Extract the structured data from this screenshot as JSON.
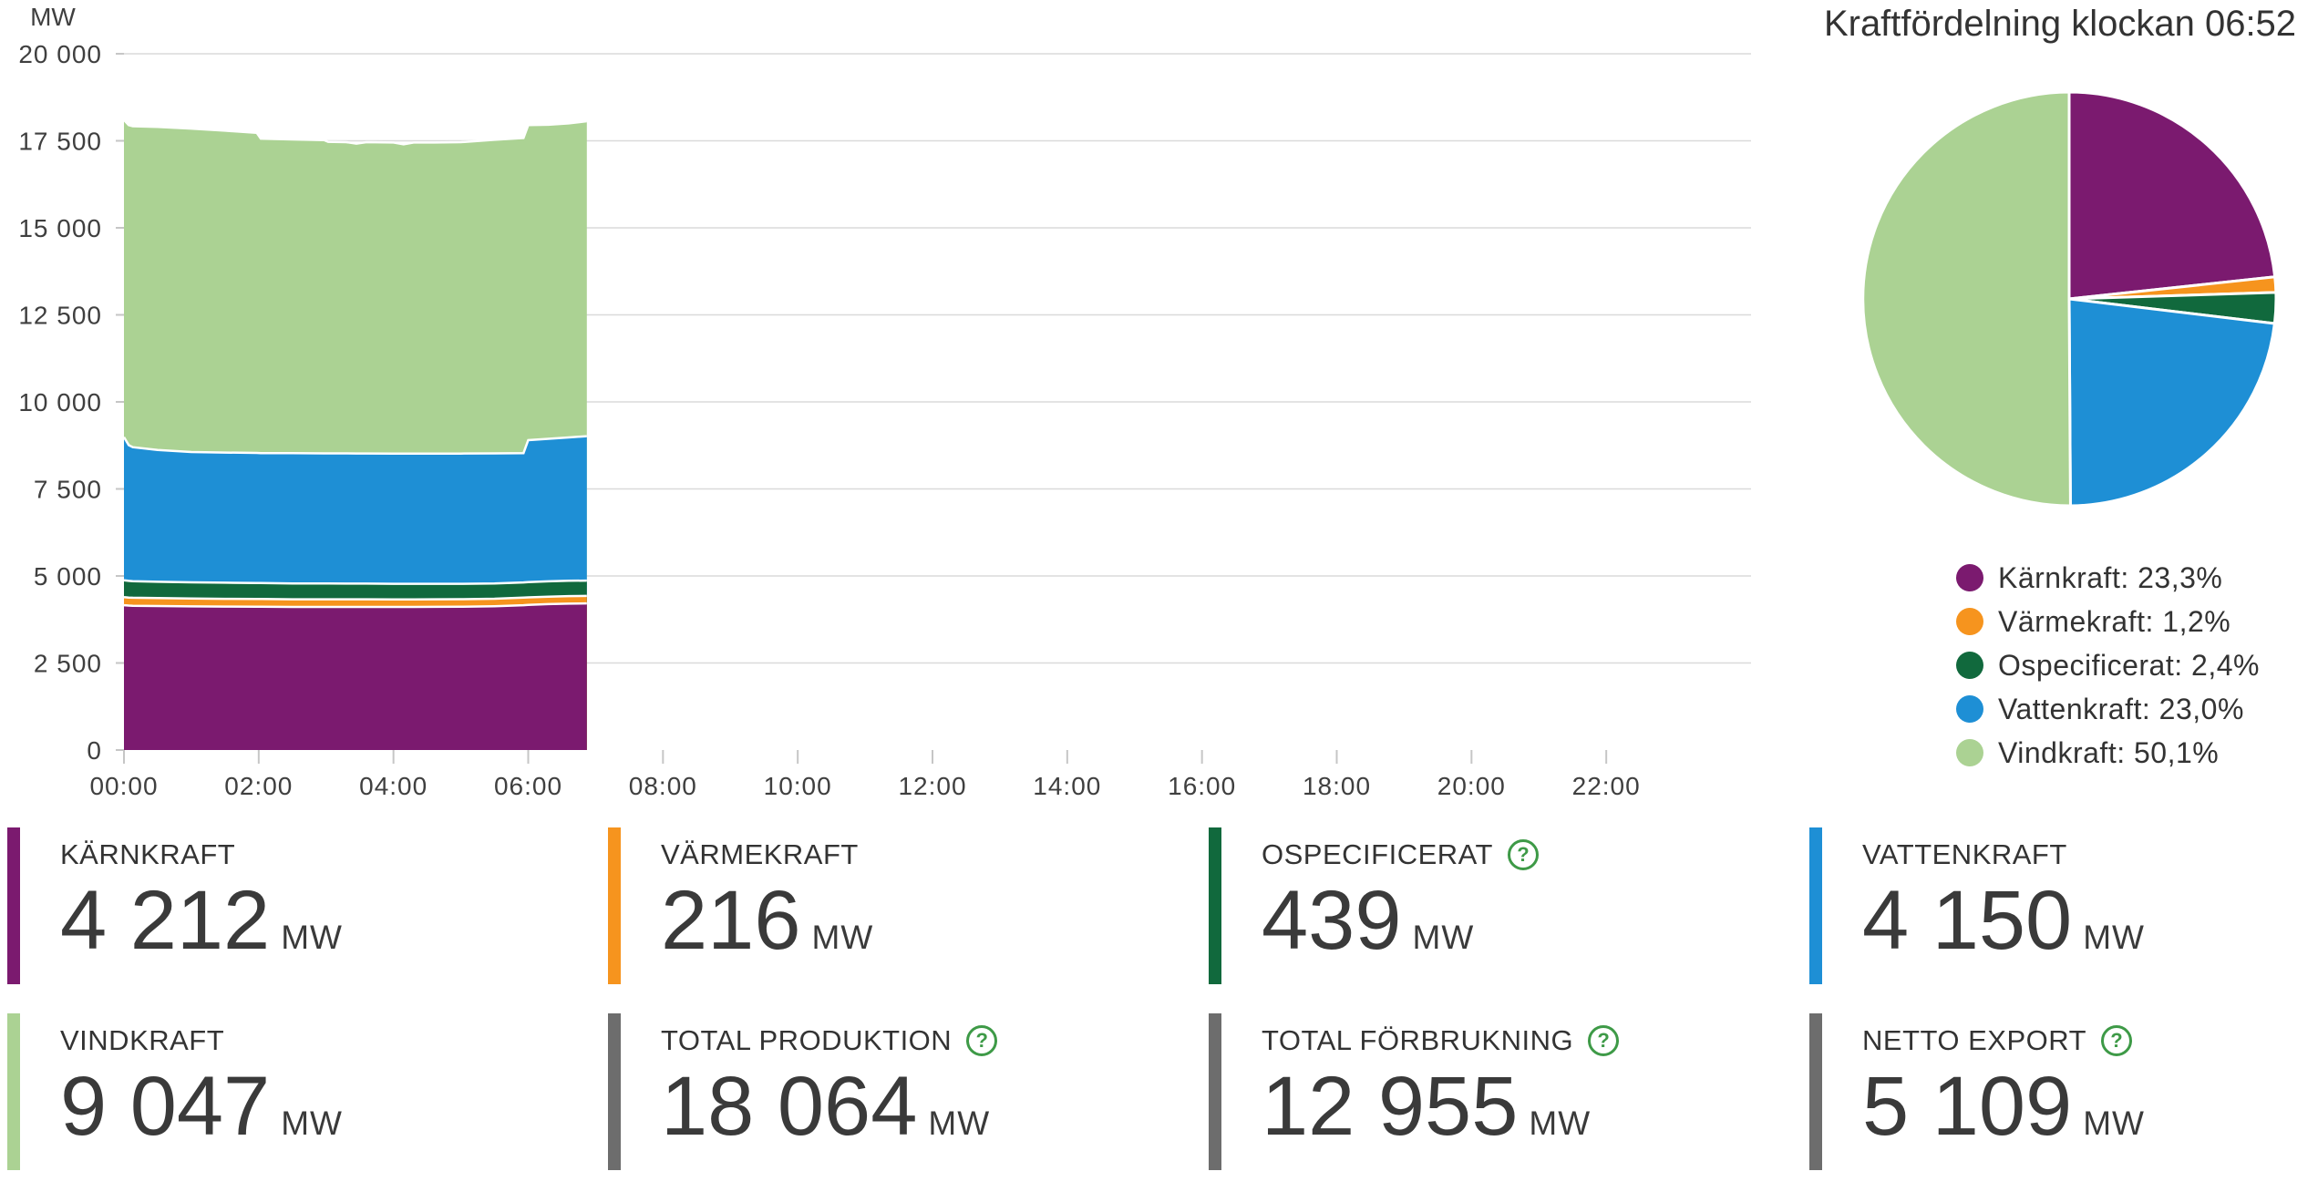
{
  "chart_data": {
    "type": "area",
    "stacked": true,
    "ylabel": "MW",
    "ylim": [
      0,
      20000
    ],
    "grid": "horizontal",
    "y_ticks": [
      "0",
      "2 500",
      "5 000",
      "7 500",
      "10 000",
      "12 500",
      "15 000",
      "17 500",
      "20 000"
    ],
    "y_tick_values": [
      0,
      2500,
      5000,
      7500,
      10000,
      12500,
      15000,
      17500,
      20000
    ],
    "x_ticks": [
      "00:00",
      "02:00",
      "04:00",
      "06:00",
      "08:00",
      "10:00",
      "12:00",
      "14:00",
      "16:00",
      "18:00",
      "20:00",
      "22:00"
    ],
    "x_tick_hours": [
      0,
      2,
      4,
      6,
      8,
      10,
      12,
      14,
      16,
      18,
      20,
      22
    ],
    "x_range_hours": [
      0,
      24.15
    ],
    "data_end_time": "06:52",
    "x": [
      0,
      0.07,
      0.13,
      0.5,
      1,
      1.5,
      1.97,
      2.03,
      2.5,
      2.97,
      3.03,
      3.3,
      3.45,
      3.6,
      4,
      4.15,
      4.3,
      4.6,
      5,
      5.5,
      5.93,
      6,
      6.3,
      6.6,
      6.87
    ],
    "series": [
      {
        "name": "Kärnkraft",
        "color": "#7B1A6F",
        "values": [
          4160,
          4150,
          4145,
          4135,
          4125,
          4120,
          4115,
          4115,
          4110,
          4110,
          4110,
          4110,
          4110,
          4110,
          4110,
          4110,
          4110,
          4112,
          4116,
          4130,
          4160,
          4170,
          4190,
          4205,
          4212
        ]
      },
      {
        "name": "Värmekraft",
        "color": "#F6941E",
        "values": [
          232,
          230,
          230,
          228,
          226,
          224,
          222,
          222,
          220,
          220,
          220,
          219,
          219,
          219,
          218,
          218,
          218,
          218,
          217,
          216,
          216,
          216,
          216,
          216,
          216
        ]
      },
      {
        "name": "Ospecificerat",
        "color": "#11693D",
        "values": [
          482,
          478,
          475,
          470,
          465,
          462,
          458,
          458,
          455,
          452,
          452,
          451,
          450,
          450,
          448,
          447,
          446,
          444,
          442,
          440,
          439,
          439,
          439,
          439,
          439
        ]
      },
      {
        "name": "Vattenkraft",
        "color": "#1E8FD5",
        "values": [
          4116,
          3902,
          3850,
          3787,
          3744,
          3739,
          3740,
          3735,
          3740,
          3738,
          3738,
          3740,
          3739,
          3739,
          3740,
          3740,
          3741,
          3741,
          3740,
          3734,
          3715,
          4075,
          4095,
          4120,
          4150
        ]
      },
      {
        "name": "Vindkraft",
        "color": "#ABD293",
        "values": [
          9110,
          9190,
          9220,
          9280,
          9290,
          9245,
          9195,
          9030,
          9015,
          9000,
          8950,
          8940,
          8902,
          8942,
          8934,
          8885,
          8935,
          8935,
          8945,
          9010,
          9050,
          9050,
          9020,
          9020,
          9047
        ]
      }
    ]
  },
  "pie": {
    "title": "Kraftfördelning klockan 06:52",
    "slices": [
      {
        "name": "Kärnkraft",
        "percent": 23.3,
        "legend": "Kärnkraft: 23,3%",
        "color": "#7B1A6F"
      },
      {
        "name": "Värmekraft",
        "percent": 1.2,
        "legend": "Värmekraft: 1,2%",
        "color": "#F6941E"
      },
      {
        "name": "Ospecificerat",
        "percent": 2.4,
        "legend": "Ospecificerat: 2,4%",
        "color": "#11693D"
      },
      {
        "name": "Vattenkraft",
        "percent": 23.0,
        "legend": "Vattenkraft: 23,0%",
        "color": "#1E8FD5"
      },
      {
        "name": "Vindkraft",
        "percent": 50.1,
        "legend": "Vindkraft: 50,1%",
        "color": "#ABD293"
      }
    ]
  },
  "cards": [
    {
      "label": "KÄRNKRAFT",
      "value": "4 212",
      "unit": "MW",
      "color": "#7B1A6F",
      "help": false,
      "help_glyph": "?"
    },
    {
      "label": "VÄRMEKRAFT",
      "value": "216",
      "unit": "MW",
      "color": "#F6941E",
      "help": false,
      "help_glyph": "?"
    },
    {
      "label": "OSPECIFICERAT",
      "value": "439",
      "unit": "MW",
      "color": "#11693D",
      "help": true,
      "help_glyph": "?"
    },
    {
      "label": "VATTENKRAFT",
      "value": "4 150",
      "unit": "MW",
      "color": "#1E8FD5",
      "help": false,
      "help_glyph": "?"
    },
    {
      "label": "VINDKRAFT",
      "value": "9 047",
      "unit": "MW",
      "color": "#ABD293",
      "help": false,
      "help_glyph": "?"
    },
    {
      "label": "TOTAL PRODUKTION",
      "value": "18 064",
      "unit": "MW",
      "color": "#6D6D6D",
      "help": true,
      "help_glyph": "?"
    },
    {
      "label": "TOTAL FÖRBRUKNING",
      "value": "12 955",
      "unit": "MW",
      "color": "#6D6D6D",
      "help": true,
      "help_glyph": "?"
    },
    {
      "label": "NETTO EXPORT",
      "value": "5 109",
      "unit": "MW",
      "color": "#6D6D6D",
      "help": true,
      "help_glyph": "?"
    }
  ],
  "theme": {
    "grid_color": "#DADADA",
    "tick_color": "#C6C6C6",
    "axis_text_color": "#3F3F3F",
    "separator_color": "#FFFFFF",
    "help_green": "#3E9A47"
  }
}
